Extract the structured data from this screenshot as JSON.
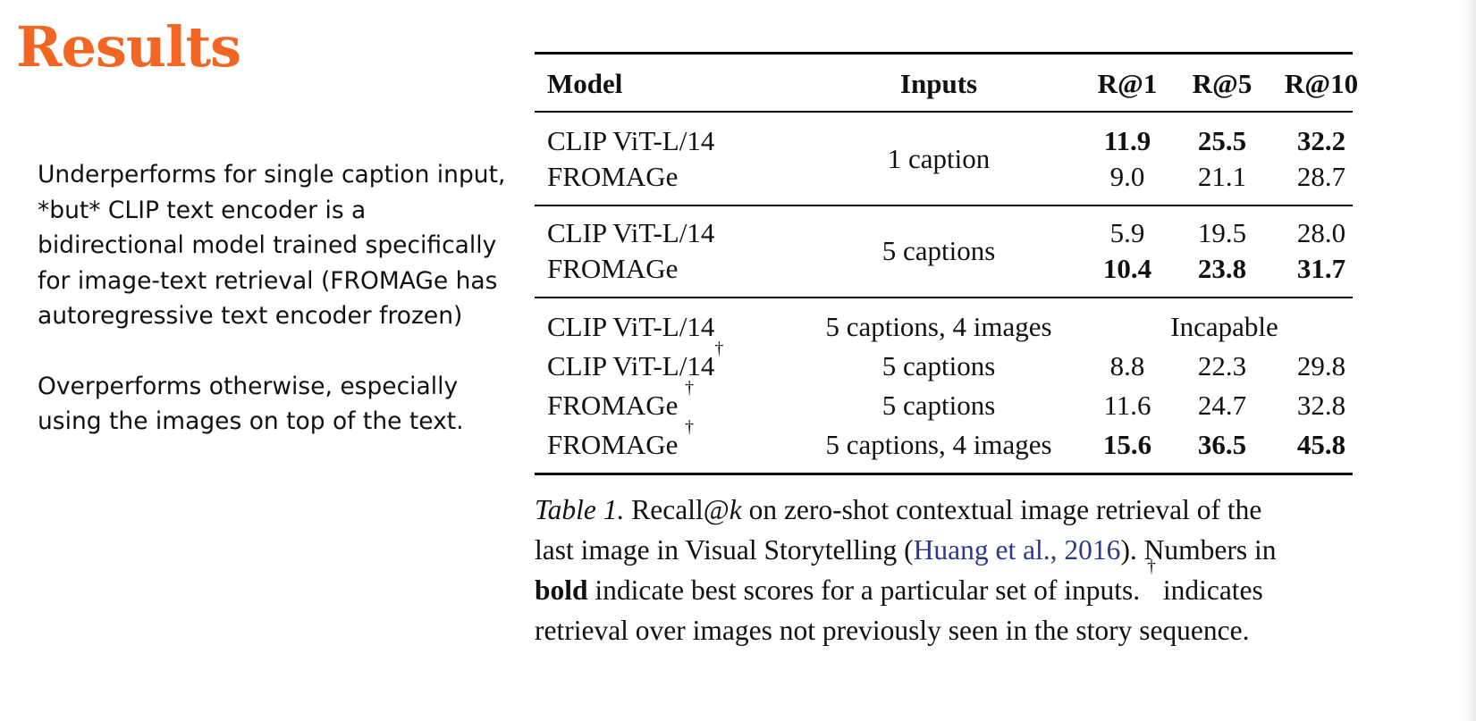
{
  "title": "Results",
  "notes": [
    "Underperforms for single caption input, *but* CLIP text encoder is a bidirectional model trained specifically for image-text retrieval (FROMAGe has autoregressive text encoder frozen)",
    "Overperforms otherwise, especially using the images on top of the text."
  ],
  "table": {
    "headers": {
      "model": "Model",
      "inputs": "Inputs",
      "r1": "R@1",
      "r5": "R@5",
      "r10": "R@10"
    },
    "group1": {
      "inputs": "1 caption",
      "rows": [
        {
          "model": "CLIP ViT-L/14",
          "r1": "11.9",
          "r5": "25.5",
          "r10": "32.2"
        },
        {
          "model": "FROMAGe",
          "r1": "9.0",
          "r5": "21.1",
          "r10": "28.7"
        }
      ]
    },
    "group2": {
      "inputs": "5 captions",
      "rows": [
        {
          "model": "CLIP ViT-L/14",
          "r1": "5.9",
          "r5": "19.5",
          "r10": "28.0"
        },
        {
          "model": "FROMAGe",
          "r1": "10.4",
          "r5": "23.8",
          "r10": "31.7"
        }
      ]
    },
    "group3": {
      "rows": [
        {
          "model": "CLIP ViT-L/14",
          "inputs": "5 captions, 4 images",
          "result": "Incapable"
        },
        {
          "model": "CLIP ViT-L/14",
          "dagger": "†",
          "inputs": "5 captions",
          "r1": "8.8",
          "r5": "22.3",
          "r10": "29.8"
        },
        {
          "model": "FROMAGe ",
          "dagger": "†",
          "inputs": "5 captions",
          "r1": "11.6",
          "r5": "24.7",
          "r10": "32.8"
        },
        {
          "model": "FROMAGe ",
          "dagger": "†",
          "inputs": "5 captions, 4 images",
          "r1": "15.6",
          "r5": "36.5",
          "r10": "45.8"
        }
      ]
    }
  },
  "caption": {
    "label": "Table 1.",
    "l1_a": " Recall@",
    "k": "k",
    "l1_b": " on zero-shot contextual image retrieval of the",
    "l2_a": "last image in Visual Storytelling (",
    "l2_cite": "Huang et al., 2016",
    "l2_b": "). Numbers in",
    "l3_bold": "bold",
    "l3_a": " indicate best scores for a particular set of inputs. ",
    "l3_dagger": "†",
    "l3_b": " indicates",
    "l4": "retrieval over images not previously seen in the story sequence."
  }
}
